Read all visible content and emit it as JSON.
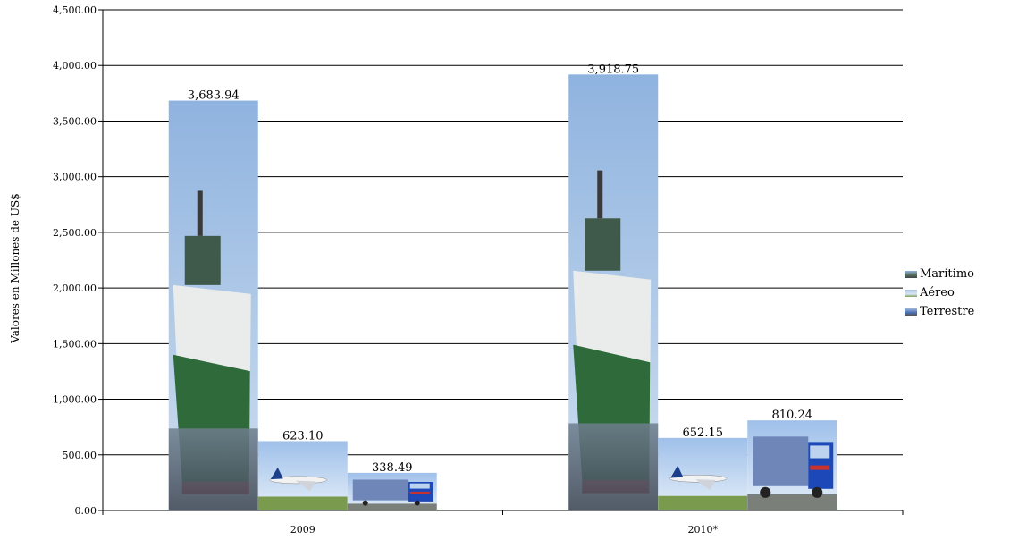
{
  "chart_data": {
    "type": "bar",
    "title": "",
    "ylabel": "Valores en Millones de US$",
    "xlabel": "",
    "ylim": [
      0,
      4500
    ],
    "ytick_step": 500,
    "ytick_labels": [
      "0.00",
      "500.00",
      "1,000.00",
      "1,500.00",
      "2,000.00",
      "2,500.00",
      "3,000.00",
      "3,500.00",
      "4,000.00",
      "4,500.00"
    ],
    "categories": [
      "2009",
      "2010*"
    ],
    "series": [
      {
        "name": "Marítimo",
        "values": [
          3683.94,
          3918.75
        ],
        "labels": [
          "3,683.94",
          "3,918.75"
        ]
      },
      {
        "name": "Aéreo",
        "values": [
          623.1,
          652.15
        ],
        "labels": [
          "623.10",
          "652.15"
        ]
      },
      {
        "name": "Terrestre",
        "values": [
          338.49,
          810.24
        ],
        "labels": [
          "338.49",
          "810.24"
        ]
      }
    ],
    "grid": true,
    "legend_position": "right"
  },
  "colors": {
    "Marítimo": "#556b55",
    "Aéreo": "#a9c4e4",
    "Terrestre": "#4a6db0"
  },
  "icons": {
    "Marítimo": "ship-photo-icon",
    "Aéreo": "airplane-photo-icon",
    "Terrestre": "truck-photo-icon"
  }
}
